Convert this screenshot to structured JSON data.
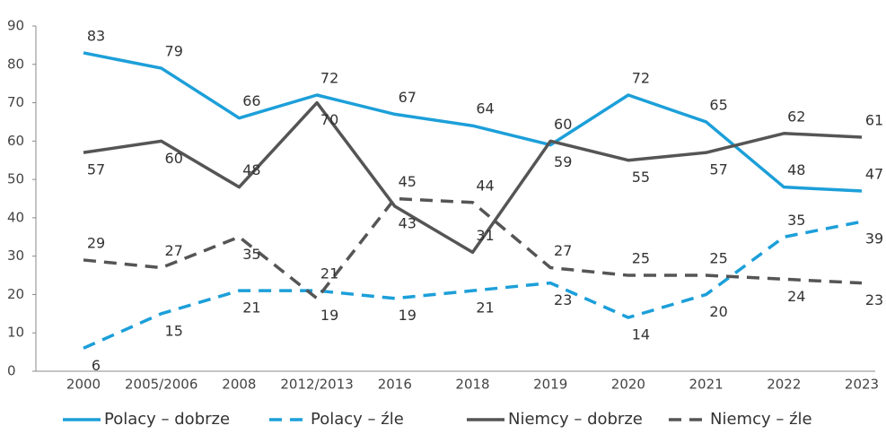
{
  "chart_data": {
    "type": "line",
    "categories": [
      "2000",
      "2005/2006",
      "2008",
      "2012/2013",
      "2016",
      "2018",
      "2019",
      "2020",
      "2021",
      "2022",
      "2023"
    ],
    "series": [
      {
        "name": "Polacy – dobrze",
        "color": "#1c9fd9",
        "style": "solid",
        "values": [
          83,
          79,
          66,
          72,
          67,
          64,
          59,
          72,
          65,
          48,
          47
        ]
      },
      {
        "name": "Polacy – źle",
        "color": "#1c9fd9",
        "style": "dashed",
        "values": [
          6,
          15,
          21,
          21,
          19,
          21,
          23,
          14,
          20,
          35,
          39
        ]
      },
      {
        "name": "Niemcy – dobrze",
        "color": "#555555",
        "style": "solid",
        "values": [
          57,
          60,
          48,
          70,
          43,
          31,
          60,
          55,
          57,
          62,
          61
        ]
      },
      {
        "name": "Niemcy – źle",
        "color": "#555555",
        "style": "dashed",
        "values": [
          29,
          27,
          35,
          19,
          45,
          44,
          27,
          25,
          25,
          24,
          23
        ]
      }
    ],
    "ylim": [
      0,
      90
    ],
    "yticks": [
      0,
      10,
      20,
      30,
      40,
      50,
      60,
      70,
      80,
      90
    ],
    "grid": false,
    "legend": "bottom"
  }
}
